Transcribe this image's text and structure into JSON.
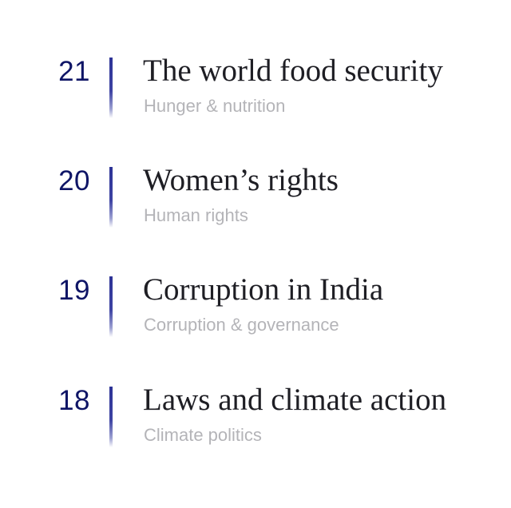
{
  "items": [
    {
      "number": "21",
      "title": "The world food security",
      "subtitle": "Hunger & nutrition"
    },
    {
      "number": "20",
      "title": "Women’s rights",
      "subtitle": "Human rights"
    },
    {
      "number": "19",
      "title": "Corruption in India",
      "subtitle": "Corruption & governance"
    },
    {
      "number": "18",
      "title": "Laws and climate action",
      "subtitle": "Climate politics"
    }
  ],
  "colors": {
    "number": "#0f1566",
    "accent_bar": "#2d3396",
    "title": "#1e1e24",
    "subtitle": "#b4b4b8",
    "background": "#ffffff"
  }
}
